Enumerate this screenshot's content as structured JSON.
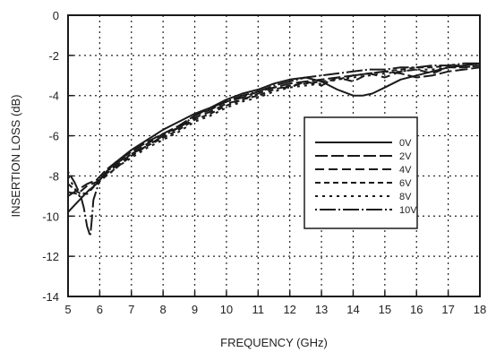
{
  "chart_data": {
    "type": "line",
    "title": "",
    "xlabel": "FREQUENCY (GHz)",
    "ylabel": "INSERTION LOSS (dB)",
    "xlim": [
      5,
      18
    ],
    "ylim": [
      -14,
      0
    ],
    "x_ticks": [
      5,
      6,
      7,
      8,
      9,
      10,
      11,
      12,
      13,
      14,
      15,
      16,
      17,
      18
    ],
    "y_ticks": [
      0,
      -2,
      -4,
      -6,
      -8,
      -10,
      -12,
      -14
    ],
    "grid": true,
    "legend_position": "right",
    "line_color": "#1a1a1a",
    "series": [
      {
        "name": "0V",
        "dash": "solid",
        "x": [
          5.0,
          5.3,
          5.6,
          5.9,
          6.2,
          6.6,
          7.0,
          7.5,
          8.0,
          8.5,
          9.0,
          9.5,
          10.0,
          10.5,
          11.0,
          11.5,
          12.0,
          12.5,
          13.0,
          13.5,
          14.0,
          14.3,
          14.6,
          15.0,
          15.5,
          16.0,
          16.5,
          17.0,
          17.5,
          18.0
        ],
        "y": [
          -9.8,
          -9.3,
          -8.8,
          -8.4,
          -7.8,
          -7.2,
          -6.7,
          -6.2,
          -5.7,
          -5.3,
          -4.9,
          -4.6,
          -4.2,
          -3.9,
          -3.7,
          -3.4,
          -3.2,
          -3.1,
          -3.3,
          -3.7,
          -4.0,
          -4.0,
          -3.9,
          -3.6,
          -3.2,
          -3.0,
          -2.8,
          -2.6,
          -2.5,
          -2.4
        ]
      },
      {
        "name": "2V",
        "dash": "dash-long",
        "x": [
          5.0,
          5.3,
          5.6,
          5.9,
          6.2,
          6.6,
          7.0,
          7.5,
          8.0,
          8.5,
          9.0,
          9.5,
          10.0,
          10.5,
          11.0,
          11.5,
          12.0,
          12.5,
          13.0,
          13.5,
          14.0,
          14.5,
          15.0,
          15.5,
          16.0,
          16.5,
          17.0,
          17.5,
          18.0
        ],
        "y": [
          -9.0,
          -8.7,
          -8.4,
          -8.2,
          -7.7,
          -7.2,
          -6.8,
          -6.3,
          -5.9,
          -5.5,
          -5.0,
          -4.7,
          -4.3,
          -4.1,
          -3.8,
          -3.6,
          -3.4,
          -3.3,
          -3.2,
          -3.1,
          -3.0,
          -2.9,
          -2.8,
          -2.9,
          -3.1,
          -3.0,
          -2.8,
          -2.7,
          -2.6
        ]
      },
      {
        "name": "4V",
        "dash": "dash-medium",
        "x": [
          5.0,
          5.3,
          5.6,
          5.9,
          6.2,
          6.6,
          7.0,
          7.5,
          8.0,
          8.5,
          9.0,
          9.5,
          10.0,
          10.5,
          11.0,
          11.5,
          12.0,
          12.5,
          13.0,
          13.5,
          14.0,
          14.5,
          15.0,
          15.5,
          16.0,
          16.5,
          17.0,
          17.5,
          18.0
        ],
        "y": [
          -8.8,
          -8.9,
          -8.5,
          -8.3,
          -7.9,
          -7.4,
          -6.9,
          -6.4,
          -5.9,
          -5.6,
          -5.1,
          -4.8,
          -4.4,
          -4.2,
          -3.9,
          -3.6,
          -3.6,
          -3.3,
          -3.5,
          -3.1,
          -3.3,
          -2.9,
          -3.1,
          -2.8,
          -2.7,
          -2.9,
          -2.6,
          -2.6,
          -2.5
        ]
      },
      {
        "name": "6V",
        "dash": "dash-short",
        "x": [
          5.0,
          5.3,
          5.6,
          5.9,
          6.2,
          6.6,
          7.0,
          7.5,
          8.0,
          8.5,
          9.0,
          9.5,
          10.0,
          10.5,
          11.0,
          11.5,
          12.0,
          12.5,
          13.0,
          13.5,
          14.0,
          14.5,
          15.0,
          15.5,
          16.0,
          16.5,
          17.0,
          17.5,
          18.0
        ],
        "y": [
          -8.4,
          -8.8,
          -8.9,
          -8.4,
          -8.0,
          -7.5,
          -7.0,
          -6.5,
          -6.1,
          -5.7,
          -5.2,
          -4.9,
          -4.5,
          -4.2,
          -4.0,
          -3.7,
          -3.5,
          -3.4,
          -3.3,
          -3.2,
          -3.0,
          -2.9,
          -2.8,
          -2.7,
          -2.6,
          -2.6,
          -2.5,
          -2.5,
          -2.4
        ]
      },
      {
        "name": "8V",
        "dash": "dot-wide",
        "x": [
          5.0,
          5.2,
          5.4,
          5.6,
          5.8,
          6.0,
          6.3,
          6.6,
          7.0,
          7.5,
          8.0,
          8.5,
          9.0,
          9.5,
          10.0,
          10.5,
          11.0,
          11.5,
          12.0,
          12.5,
          13.0,
          13.5,
          14.0,
          14.5,
          15.0,
          15.5,
          16.0,
          16.5,
          17.0,
          17.5,
          18.0
        ],
        "y": [
          -8.0,
          -8.6,
          -9.1,
          -8.8,
          -8.5,
          -8.2,
          -7.9,
          -7.5,
          -7.1,
          -6.6,
          -6.2,
          -5.8,
          -5.3,
          -5.0,
          -4.6,
          -4.3,
          -4.1,
          -3.8,
          -3.6,
          -3.5,
          -3.4,
          -3.2,
          -3.1,
          -3.0,
          -2.9,
          -2.8,
          -2.7,
          -2.7,
          -2.6,
          -2.6,
          -2.5
        ]
      },
      {
        "name": "10V",
        "dash": "dot-solid",
        "x": [
          5.0,
          5.2,
          5.4,
          5.5,
          5.6,
          5.7,
          5.75,
          5.8,
          6.0,
          6.3,
          6.6,
          7.0,
          7.5,
          8.0,
          8.5,
          9.0,
          9.5,
          10.0,
          10.5,
          11.0,
          11.5,
          12.0,
          12.5,
          13.0,
          13.5,
          14.0,
          14.5,
          15.0,
          15.5,
          16.0,
          16.5,
          17.0,
          17.5,
          18.0
        ],
        "y": [
          -7.8,
          -8.3,
          -9.0,
          -9.6,
          -10.5,
          -11.0,
          -10.2,
          -9.2,
          -8.2,
          -7.7,
          -7.3,
          -6.9,
          -6.5,
          -6.0,
          -5.6,
          -5.0,
          -4.6,
          -4.3,
          -4.0,
          -3.8,
          -3.5,
          -3.3,
          -3.1,
          -3.0,
          -2.9,
          -2.8,
          -2.7,
          -2.7,
          -2.6,
          -2.6,
          -2.5,
          -2.5,
          -2.4,
          -2.4
        ]
      }
    ]
  }
}
